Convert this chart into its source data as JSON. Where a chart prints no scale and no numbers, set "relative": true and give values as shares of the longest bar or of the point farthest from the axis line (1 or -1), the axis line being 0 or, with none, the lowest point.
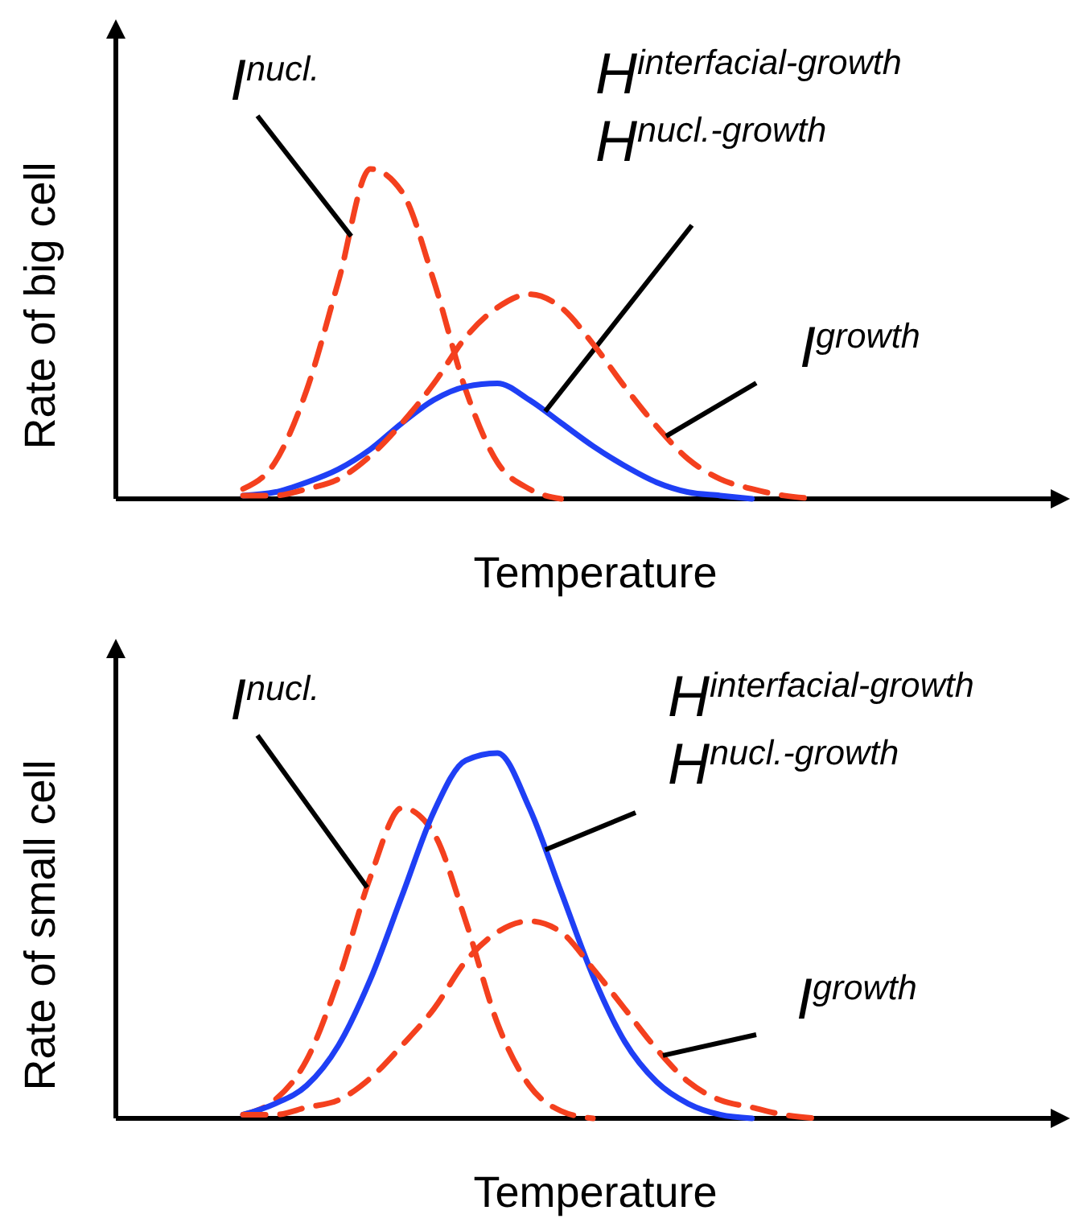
{
  "chart_data": [
    {
      "type": "line",
      "relative": true,
      "xlabel": "Temperature",
      "ylabel": "Rate of big cell",
      "categories": [
        null,
        null,
        null,
        null,
        null,
        null,
        null,
        null,
        null,
        null,
        null,
        null,
        null,
        null,
        null,
        null,
        null,
        null,
        null,
        null,
        null,
        null,
        null,
        null,
        null,
        null,
        null,
        null,
        null,
        null,
        null
      ],
      "series": [
        {
          "name": "I$^{nucl.}$",
          "color": "#f4401e",
          "line_style": "dashed",
          "values": [
            null,
            null,
            null,
            null,
            0.03,
            0.11,
            0.33,
            0.66,
            1,
            0.93,
            0.66,
            0.33,
            0.11,
            0.03,
            0,
            null,
            null,
            null,
            null,
            null,
            null,
            null,
            null,
            null,
            null,
            null,
            null,
            null,
            null,
            null,
            null
          ]
        },
        {
          "name": "H$^{interfacial-growth}$\nH$^{nucl.-growth}$",
          "color": "#1f3ff5",
          "line_style": "solid",
          "values": [
            null,
            null,
            null,
            null,
            0.01,
            0.02,
            0.05,
            0.09,
            0.15,
            0.23,
            0.3,
            0.34,
            0.35,
            0.3,
            0.23,
            0.16,
            0.1,
            0.05,
            0.02,
            0.01,
            0,
            null,
            null,
            null,
            null,
            null,
            null,
            null,
            null,
            null,
            null
          ]
        },
        {
          "name": "I$^{growth}$",
          "color": "#f4401e",
          "line_style": "dashed",
          "values": [
            null,
            null,
            null,
            null,
            0.01,
            0.01,
            0.03,
            0.06,
            0.13,
            0.23,
            0.35,
            0.49,
            0.58,
            0.62,
            0.58,
            0.47,
            0.34,
            0.22,
            0.12,
            0.06,
            0.03,
            0.01,
            0,
            null,
            null,
            null,
            null,
            null,
            null,
            null,
            null
          ]
        }
      ]
    },
    {
      "type": "line",
      "relative": true,
      "xlabel": "Temperature",
      "ylabel": "Rate of small cell",
      "categories": [
        null,
        null,
        null,
        null,
        null,
        null,
        null,
        null,
        null,
        null,
        null,
        null,
        null,
        null,
        null,
        null,
        null,
        null,
        null,
        null,
        null,
        null,
        null,
        null,
        null,
        null,
        null,
        null,
        null,
        null,
        null
      ],
      "series": [
        {
          "name": "I$^{nucl.}$",
          "color": "#f4401e",
          "line_style": "dashed",
          "values": [
            null,
            null,
            null,
            null,
            0.01,
            0.05,
            0.16,
            0.38,
            0.66,
            0.85,
            0.78,
            0.54,
            0.26,
            0.09,
            0.02,
            0,
            null,
            null,
            null,
            null,
            null,
            null,
            null,
            null,
            null,
            null,
            null,
            null,
            null,
            null,
            null
          ]
        },
        {
          "name": "H$^{interfacial-growth}$\nH$^{nucl.-growth}$",
          "color": "#1f3ff5",
          "line_style": "solid",
          "values": [
            null,
            null,
            null,
            null,
            0.01,
            0.04,
            0.09,
            0.2,
            0.38,
            0.61,
            0.84,
            0.98,
            1,
            0.85,
            0.62,
            0.39,
            0.21,
            0.1,
            0.04,
            0.01,
            0,
            null,
            null,
            null,
            null,
            null,
            null,
            null,
            null,
            null,
            null
          ]
        },
        {
          "name": "I$^{growth}$",
          "color": "#f4401e",
          "line_style": "dashed",
          "values": [
            null,
            null,
            null,
            null,
            0.01,
            0.01,
            0.03,
            0.05,
            0.11,
            0.2,
            0.3,
            0.43,
            0.51,
            0.54,
            0.51,
            0.41,
            0.3,
            0.19,
            0.1,
            0.05,
            0.03,
            0.01,
            0,
            null,
            null,
            null,
            null,
            null,
            null,
            null,
            null
          ]
        }
      ]
    }
  ]
}
